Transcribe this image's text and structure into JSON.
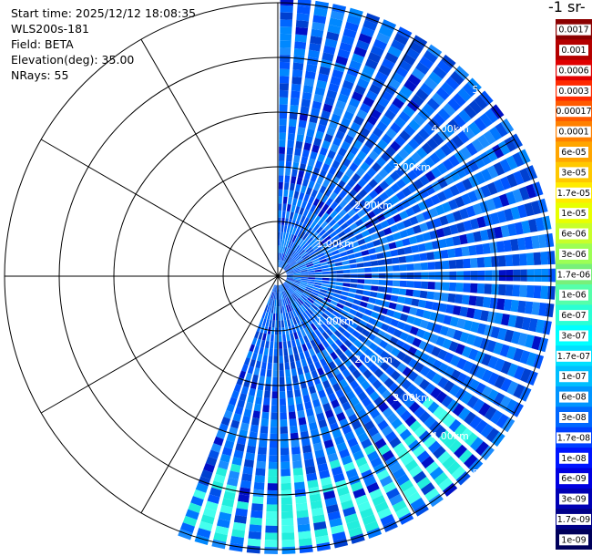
{
  "info": {
    "start_time": "Start time: 2025/12/12 18:08:35",
    "instrument": "WLS200s-181",
    "field": "Field: BETA",
    "elevation": "Elevation(deg): 35.00",
    "nrays": "NRays: 55"
  },
  "colorbar": {
    "title": "-1 sr-",
    "labels": [
      "0.0017",
      "0.001",
      "0.0006",
      "0.0003",
      "0.00017",
      "0.0001",
      "6e-05",
      "3e-05",
      "1.7e-05",
      "1e-05",
      "6e-06",
      "3e-06",
      "1.7e-06",
      "1e-06",
      "6e-07",
      "3e-07",
      "1.7e-07",
      "1e-07",
      "6e-08",
      "3e-08",
      "1.7e-08",
      "1e-08",
      "6e-09",
      "3e-09",
      "1.7e-09",
      "1e-09"
    ],
    "colors": [
      "#8b0000",
      "#b40000",
      "#e00000",
      "#ff2a00",
      "#ff5a00",
      "#ff8000",
      "#ffa500",
      "#ffc800",
      "#ffeb00",
      "#e8ff00",
      "#c8ff2a",
      "#9dff55",
      "#78f07a",
      "#55ffaa",
      "#2affd4",
      "#00ffff",
      "#00e0ff",
      "#00bfff",
      "#0095ff",
      "#0068ff",
      "#0040ff",
      "#0015ff",
      "#0000e0",
      "#0000b4",
      "#000088",
      "#00005a"
    ]
  },
  "range_labels": [
    "1.00km",
    "2.00km",
    "3.00km",
    "4.00km"
  ],
  "range_label_partial": "5"
}
